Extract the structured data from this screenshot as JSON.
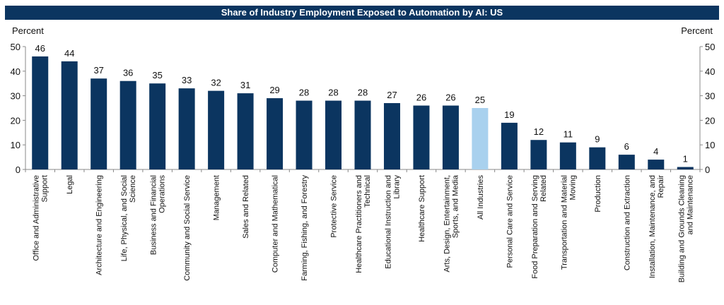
{
  "chart_data": {
    "type": "bar",
    "title": "Share of Industry Employment Exposed to Automation by AI: US",
    "ylabel_left": "Percent",
    "ylabel_right": "Percent",
    "ylim": [
      0,
      50
    ],
    "yticks": [
      0,
      10,
      20,
      30,
      40,
      50
    ],
    "grid": false,
    "colors": {
      "default": "#0b3560",
      "highlight": "#a9d1ee",
      "title_bar": "#0b3560"
    },
    "highlight_category": "All Industries",
    "categories": [
      [
        "Office and Administrative",
        "Support"
      ],
      [
        "Legal"
      ],
      [
        "Architecture and Engineering"
      ],
      [
        "Life, Physical, and Social",
        "Science"
      ],
      [
        "Business and Financial",
        "Operations"
      ],
      [
        "Community and Social Service"
      ],
      [
        "Management"
      ],
      [
        "Sales and Related"
      ],
      [
        "Computer and Mathematical"
      ],
      [
        "Farming, Fishing, and Forestry"
      ],
      [
        "Protective Service"
      ],
      [
        "Healthcare Practitioners and",
        "Technical"
      ],
      [
        "Educational Instruction and",
        "Library"
      ],
      [
        "Healthcare Support"
      ],
      [
        "Arts, Design, Entertainment,",
        "Sports, and Media"
      ],
      [
        "All Industries"
      ],
      [
        "Personal Care and Service"
      ],
      [
        "Food Preparation and Serving",
        "Related"
      ],
      [
        "Transportation and Material",
        "Moving"
      ],
      [
        "Production"
      ],
      [
        "Construction and Extraction"
      ],
      [
        "Installation, Maintenance, and",
        "Repair"
      ],
      [
        "Building and Grounds Cleaning",
        "and Maintenance"
      ]
    ],
    "values": [
      46,
      44,
      37,
      36,
      35,
      33,
      32,
      31,
      29,
      28,
      28,
      28,
      27,
      26,
      26,
      25,
      19,
      12,
      11,
      9,
      6,
      4,
      1
    ]
  }
}
